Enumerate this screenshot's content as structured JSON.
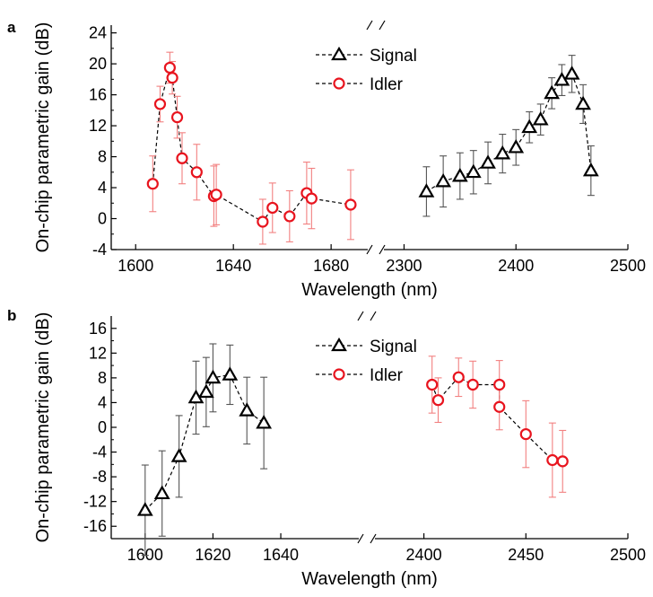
{
  "chart_data": [
    {
      "panel": "a",
      "type": "scatter",
      "xlabel": "Wavelength (nm)",
      "ylabel": "On-chip parametric gain (dB)",
      "broken_x_axis": true,
      "x_segments": [
        {
          "range": [
            1590,
            1695
          ],
          "ticks": [
            1600,
            1640,
            1680
          ]
        },
        {
          "range": [
            2282,
            2500
          ],
          "ticks": [
            2300,
            2400,
            2500
          ]
        }
      ],
      "ylim": [
        -4,
        25
      ],
      "yticks": [
        -4,
        0,
        4,
        8,
        12,
        16,
        20,
        24
      ],
      "legend_position": "top-center",
      "series": [
        {
          "name": "Signal",
          "color": "#000000",
          "marker": "triangle",
          "segment": 1,
          "points": [
            {
              "x": 2320,
              "y": 3.5,
              "err": 3.2
            },
            {
              "x": 2335,
              "y": 4.8,
              "err": 3.3
            },
            {
              "x": 2350,
              "y": 5.5,
              "err": 3.0
            },
            {
              "x": 2362,
              "y": 6.0,
              "err": 2.8
            },
            {
              "x": 2375,
              "y": 7.2,
              "err": 2.7
            },
            {
              "x": 2388,
              "y": 8.4,
              "err": 2.5
            },
            {
              "x": 2400,
              "y": 9.2,
              "err": 2.3
            },
            {
              "x": 2412,
              "y": 11.8,
              "err": 2.0
            },
            {
              "x": 2422,
              "y": 12.8,
              "err": 2.0
            },
            {
              "x": 2432,
              "y": 16.2,
              "err": 2.0
            },
            {
              "x": 2441,
              "y": 17.9,
              "err": 2.0
            },
            {
              "x": 2450,
              "y": 18.7,
              "err": 2.4
            },
            {
              "x": 2460,
              "y": 14.8,
              "err": 2.5
            },
            {
              "x": 2467,
              "y": 6.2,
              "err": 3.2
            }
          ]
        },
        {
          "name": "Idler",
          "color": "#e8141e",
          "marker": "circle",
          "segment": 0,
          "points": [
            {
              "x": 1607,
              "y": 4.5,
              "err": 3.6
            },
            {
              "x": 1610,
              "y": 14.8,
              "err": 2.3
            },
            {
              "x": 1614,
              "y": 19.5,
              "err": 2.0
            },
            {
              "x": 1615,
              "y": 18.2,
              "err": 2.1
            },
            {
              "x": 1617,
              "y": 13.1,
              "err": 2.7
            },
            {
              "x": 1619,
              "y": 7.8,
              "err": 3.3
            },
            {
              "x": 1625,
              "y": 6.0,
              "err": 3.6
            },
            {
              "x": 1632,
              "y": 2.9,
              "err": 3.9
            },
            {
              "x": 1633,
              "y": 3.1,
              "err": 3.9
            },
            {
              "x": 1652,
              "y": -0.4,
              "err": 2.9
            },
            {
              "x": 1656,
              "y": 1.4,
              "err": 3.2
            },
            {
              "x": 1663,
              "y": 0.3,
              "err": 3.3
            },
            {
              "x": 1670,
              "y": 3.3,
              "err": 4.0
            },
            {
              "x": 1672,
              "y": 2.6,
              "err": 3.9
            },
            {
              "x": 1688,
              "y": 1.8,
              "err": 4.5
            }
          ]
        }
      ]
    },
    {
      "panel": "b",
      "type": "scatter",
      "xlabel": "Wavelength (nm)",
      "ylabel": "On-chip parametric gain (dB)",
      "broken_x_axis": true,
      "x_segments": [
        {
          "range": [
            1590,
            1663
          ],
          "ticks": [
            1600,
            1620,
            1640
          ]
        },
        {
          "range": [
            2376,
            2500
          ],
          "ticks": [
            2400,
            2450,
            2500
          ]
        }
      ],
      "ylim": [
        -18,
        18
      ],
      "yticks": [
        -16,
        -12,
        -8,
        -4,
        0,
        4,
        8,
        12,
        16
      ],
      "legend_position": "top-center",
      "series": [
        {
          "name": "Signal",
          "color": "#000000",
          "marker": "triangle",
          "segment": 0,
          "points": [
            {
              "x": 1600,
              "y": -13.4,
              "err": 7.3
            },
            {
              "x": 1605,
              "y": -10.7,
              "err": 6.9
            },
            {
              "x": 1610,
              "y": -4.7,
              "err": 6.6
            },
            {
              "x": 1615,
              "y": 4.8,
              "err": 5.9
            },
            {
              "x": 1618,
              "y": 5.7,
              "err": 5.6
            },
            {
              "x": 1620,
              "y": 8.0,
              "err": 5.5
            },
            {
              "x": 1625,
              "y": 8.5,
              "err": 4.8
            },
            {
              "x": 1630,
              "y": 2.7,
              "err": 5.4
            },
            {
              "x": 1635,
              "y": 0.7,
              "err": 7.4
            }
          ]
        },
        {
          "name": "Idler",
          "color": "#e8141e",
          "marker": "circle",
          "segment": 1,
          "points": [
            {
              "x": 2404,
              "y": 6.9,
              "err": 4.6
            },
            {
              "x": 2407,
              "y": 4.4,
              "err": 3.6
            },
            {
              "x": 2417,
              "y": 8.1,
              "err": 3.1
            },
            {
              "x": 2424,
              "y": 6.9,
              "err": 3.8
            },
            {
              "x": 2437,
              "y": 6.9,
              "err": 3.9
            },
            {
              "x": 2437,
              "y": 3.3,
              "err": 3.7
            },
            {
              "x": 2450,
              "y": -1.1,
              "err": 5.4
            },
            {
              "x": 2463,
              "y": -5.3,
              "err": 6.0
            },
            {
              "x": 2468,
              "y": -5.5,
              "err": 5.0
            }
          ]
        }
      ]
    }
  ]
}
